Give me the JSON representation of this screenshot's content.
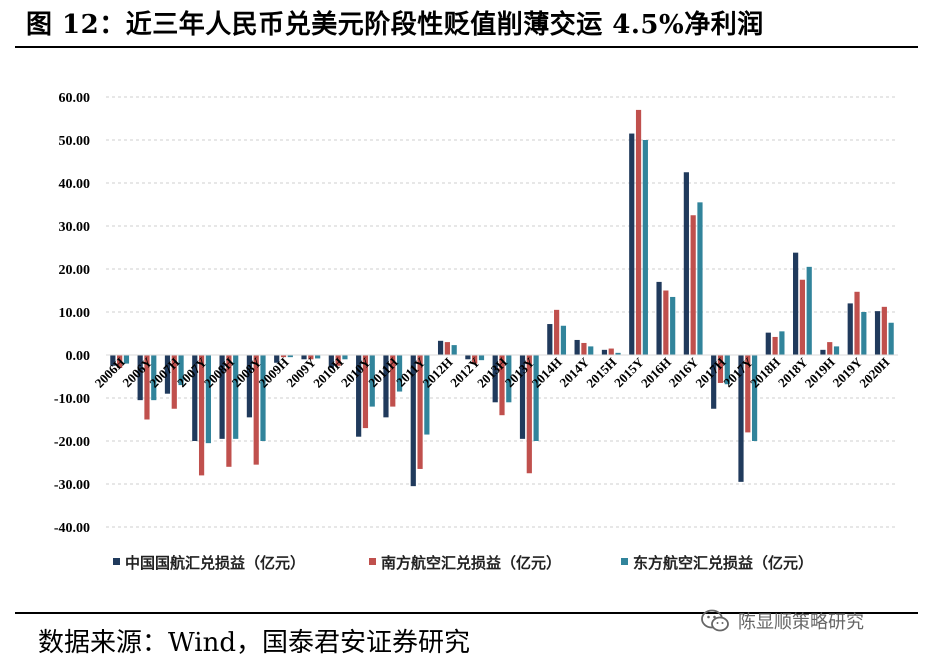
{
  "header": {
    "title": "图 12：近三年人民币兑美元阶段性贬值削薄交运 4.5%净利润"
  },
  "footer": {
    "source": "数据来源：Wind，国泰君安证券研究",
    "watermark": "陈显顺策略研究"
  },
  "icons": {
    "watermark_icon": "wechat-icon"
  },
  "colors": {
    "series1": "#203a5c",
    "series2": "#c0504d",
    "series3": "#31849b",
    "grid": "#cfcfcf"
  },
  "chart_data": {
    "type": "bar",
    "title": "",
    "xlabel": "",
    "ylabel": "",
    "ylim": [
      -40,
      60
    ],
    "yticks": [
      "-40.00",
      "-30.00",
      "-20.00",
      "-10.00",
      "0.00",
      "10.00",
      "20.00",
      "30.00",
      "40.00",
      "50.00",
      "60.00"
    ],
    "grid": true,
    "legend_position": "bottom",
    "categories": [
      "2006H",
      "2006Y",
      "2007H",
      "2007Y",
      "2008H",
      "2008Y",
      "2009H",
      "2009Y",
      "2010H",
      "2010Y",
      "2011H",
      "2011Y",
      "2012H",
      "2012Y",
      "2013H",
      "2013Y",
      "2014H",
      "2014Y",
      "2015H",
      "2015Y",
      "2016H",
      "2016Y",
      "2017H",
      "2017Y",
      "2018H",
      "2018Y",
      "2019H",
      "2019Y",
      "2020H"
    ],
    "series": [
      {
        "name": "中国国航汇兑损益（亿元）",
        "values": [
          -2.5,
          -10.5,
          -9.0,
          -20.0,
          -19.5,
          -14.5,
          -1.8,
          -1.0,
          -3.0,
          -19.0,
          -14.5,
          -30.5,
          3.3,
          -1.0,
          -11.0,
          -19.5,
          7.2,
          3.5,
          1.2,
          51.5,
          17.0,
          42.5,
          -12.5,
          -29.5,
          5.2,
          23.8,
          1.2,
          12.0,
          10.2
        ]
      },
      {
        "name": "南方航空汇兑损益（亿元）",
        "values": [
          -3.0,
          -15.0,
          -12.5,
          -28.0,
          -26.0,
          -25.5,
          -0.5,
          -1.0,
          -2.5,
          -17.0,
          -12.0,
          -26.5,
          3.0,
          -2.0,
          -14.0,
          -27.5,
          10.5,
          2.8,
          1.5,
          57.0,
          15.0,
          32.5,
          -6.5,
          -18.0,
          4.2,
          17.5,
          3.0,
          14.7,
          11.2
        ]
      },
      {
        "name": "东方航空汇兑损益（亿元）",
        "values": [
          -2.0,
          -10.5,
          -7.0,
          -20.5,
          -19.5,
          -20.0,
          -0.5,
          -0.8,
          -1.0,
          -12.0,
          -8.5,
          -18.5,
          2.3,
          -1.2,
          -11.0,
          -20.0,
          6.8,
          2.0,
          0.5,
          50.0,
          13.5,
          35.5,
          -6.8,
          -20.0,
          5.5,
          20.5,
          2.0,
          10.0,
          7.5
        ]
      }
    ]
  }
}
